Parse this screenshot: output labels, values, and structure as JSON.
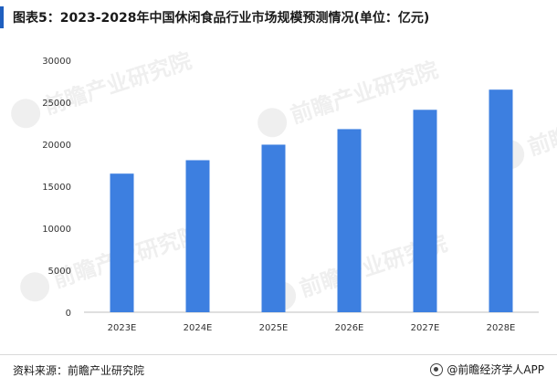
{
  "header": {
    "title": "图表5：2023-2028年中国休闲食品行业市场规模预测情况(单位：亿元)"
  },
  "footer": {
    "source": "资料来源：前瞻产业研究院",
    "brand": "@前瞻经济学人APP"
  },
  "watermark": {
    "text": "前瞻产业研究院"
  },
  "colors": {
    "bar": "#3d7fe0",
    "accent": "#1f5fbf"
  },
  "chart_data": {
    "type": "bar",
    "title": "图表5：2023-2028年中国休闲食品行业市场规模预测情况(单位：亿元)",
    "categories": [
      "2023E",
      "2024E",
      "2025E",
      "2026E",
      "2027E",
      "2028E"
    ],
    "values": [
      16500,
      18100,
      19950,
      21800,
      24100,
      26500
    ],
    "ylim": [
      0,
      30000
    ],
    "yticks": [
      "0",
      "5000",
      "10000",
      "15000",
      "20000",
      "25000",
      "30000"
    ],
    "grid": false,
    "legend": "none"
  }
}
